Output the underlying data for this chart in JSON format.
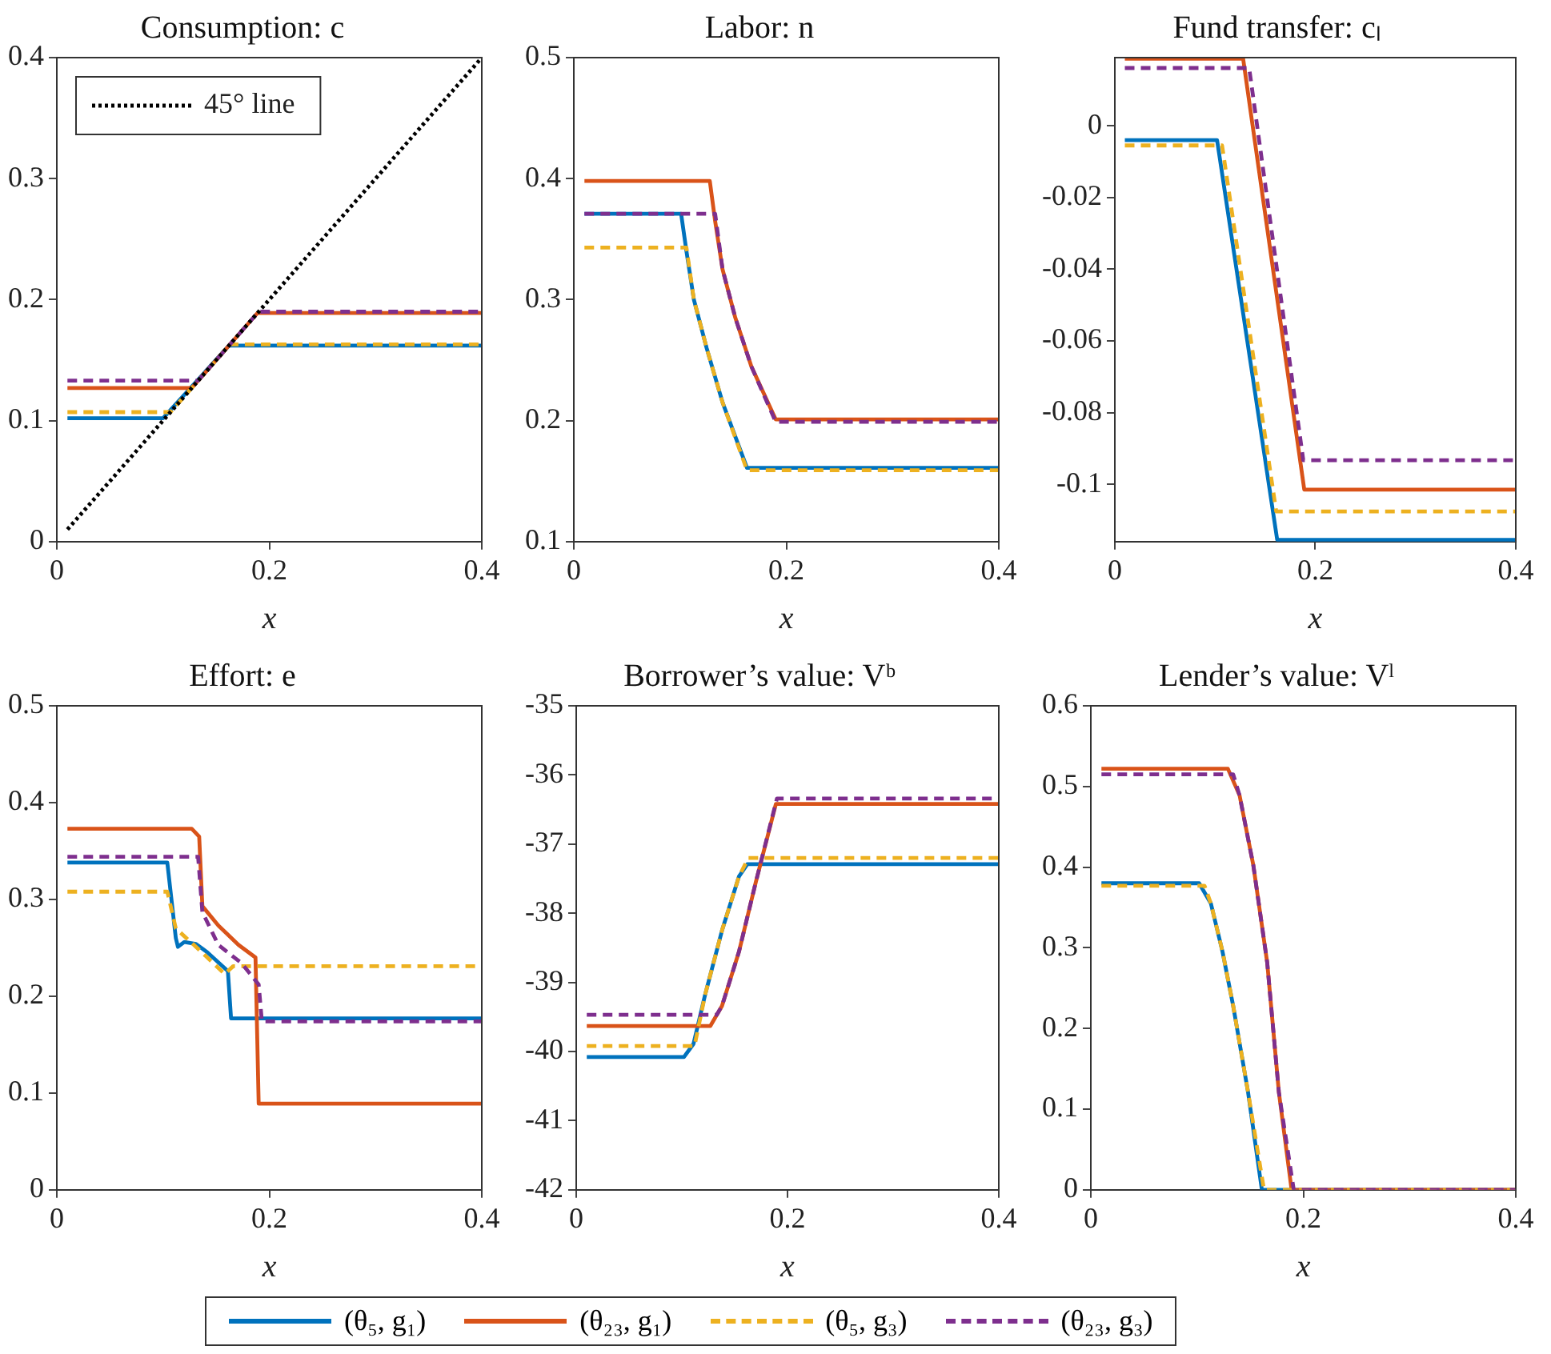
{
  "chart_data": [
    {
      "type": "line",
      "title": "Consumption: c",
      "xlabel": "x",
      "xlim": [
        0,
        0.4
      ],
      "xticks": [
        0,
        0.2,
        0.4
      ],
      "ylim": [
        0,
        0.4
      ],
      "yticks": [
        0,
        0.1,
        0.2,
        0.3,
        0.4
      ],
      "grid": false,
      "legend": "top left",
      "series": [
        {
          "color": "#0072bd",
          "line_style": "solid",
          "x": [
            0.01,
            0.1,
            0.162,
            0.4
          ],
          "values": [
            0.102,
            0.102,
            0.162,
            0.162
          ]
        },
        {
          "color": "#d95319",
          "line_style": "solid",
          "x": [
            0.01,
            0.127,
            0.189,
            0.4
          ],
          "values": [
            0.127,
            0.127,
            0.189,
            0.189
          ]
        },
        {
          "color": "#edb120",
          "line_style": "dashed",
          "x": [
            0.01,
            0.107,
            0.163,
            0.4
          ],
          "values": [
            0.107,
            0.107,
            0.163,
            0.163
          ]
        },
        {
          "color": "#7e2f8e",
          "line_style": "dashed",
          "x": [
            0.01,
            0.133,
            0.19,
            0.4
          ],
          "values": [
            0.133,
            0.133,
            0.19,
            0.19
          ]
        },
        {
          "name": "45° line",
          "color": "#000000",
          "line_style": "dotted",
          "x": [
            0.01,
            0.4
          ],
          "values": [
            0.01,
            0.4
          ]
        }
      ]
    },
    {
      "type": "line",
      "title": "Labor: n",
      "xlabel": "x",
      "xlim": [
        0,
        0.4
      ],
      "xticks": [
        0,
        0.2,
        0.4
      ],
      "ylim": [
        0.1,
        0.5
      ],
      "yticks": [
        0.1,
        0.2,
        0.3,
        0.4,
        0.5
      ],
      "grid": false,
      "series": [
        {
          "color": "#0072bd",
          "line_style": "solid",
          "x": [
            0.01,
            0.101,
            0.106,
            0.113,
            0.125,
            0.14,
            0.163,
            0.4
          ],
          "values": [
            0.371,
            0.371,
            0.34,
            0.3,
            0.26,
            0.215,
            0.161,
            0.161
          ]
        },
        {
          "color": "#d95319",
          "line_style": "solid",
          "x": [
            0.01,
            0.128,
            0.133,
            0.14,
            0.152,
            0.167,
            0.19,
            0.4
          ],
          "values": [
            0.398,
            0.398,
            0.365,
            0.325,
            0.285,
            0.245,
            0.201,
            0.201
          ]
        },
        {
          "color": "#edb120",
          "line_style": "dashed",
          "x": [
            0.01,
            0.106,
            0.113,
            0.125,
            0.14,
            0.163,
            0.4
          ],
          "values": [
            0.343,
            0.343,
            0.3,
            0.26,
            0.215,
            0.159,
            0.159
          ]
        },
        {
          "color": "#7e2f8e",
          "line_style": "dashed",
          "x": [
            0.01,
            0.133,
            0.14,
            0.152,
            0.167,
            0.19,
            0.4
          ],
          "values": [
            0.371,
            0.371,
            0.325,
            0.285,
            0.245,
            0.199,
            0.199
          ]
        }
      ]
    },
    {
      "type": "line",
      "title": "Fund transfer: cₗ",
      "xlabel": "x",
      "xlim": [
        0,
        0.4
      ],
      "xticks": [
        0,
        0.2,
        0.4
      ],
      "ylim": [
        -0.116,
        0.019
      ],
      "yticks": [
        -0.1,
        -0.08,
        -0.06,
        -0.04,
        -0.02,
        0
      ],
      "grid": false,
      "series": [
        {
          "color": "#0072bd",
          "line_style": "solid",
          "x": [
            0.01,
            0.102,
            0.162,
            0.4
          ],
          "values": [
            -0.004,
            -0.004,
            -0.1155,
            -0.1155
          ]
        },
        {
          "color": "#d95319",
          "line_style": "solid",
          "x": [
            0.01,
            0.128,
            0.189,
            0.4
          ],
          "values": [
            0.0187,
            0.0187,
            -0.1015,
            -0.1015
          ]
        },
        {
          "color": "#edb120",
          "line_style": "dashed",
          "x": [
            0.01,
            0.107,
            0.161,
            0.4
          ],
          "values": [
            -0.0055,
            -0.0055,
            -0.1076,
            -0.1076
          ]
        },
        {
          "color": "#7e2f8e",
          "line_style": "dashed",
          "x": [
            0.01,
            0.134,
            0.188,
            0.4
          ],
          "values": [
            0.0161,
            0.0161,
            -0.0933,
            -0.0933
          ]
        }
      ]
    },
    {
      "type": "line",
      "title": "Effort: e",
      "xlabel": "x",
      "xlim": [
        0,
        0.4
      ],
      "xticks": [
        0,
        0.2,
        0.4
      ],
      "ylim": [
        0,
        0.5
      ],
      "yticks": [
        0,
        0.1,
        0.2,
        0.3,
        0.4,
        0.5
      ],
      "grid": false,
      "series": [
        {
          "color": "#0072bd",
          "line_style": "solid",
          "x": [
            0.01,
            0.104,
            0.112,
            0.114,
            0.12,
            0.131,
            0.142,
            0.161,
            0.164,
            0.4
          ],
          "values": [
            0.338,
            0.338,
            0.26,
            0.251,
            0.256,
            0.254,
            0.245,
            0.226,
            0.177,
            0.177
          ]
        },
        {
          "color": "#d95319",
          "line_style": "solid",
          "x": [
            0.01,
            0.127,
            0.134,
            0.137,
            0.152,
            0.171,
            0.187,
            0.19,
            0.4
          ],
          "values": [
            0.373,
            0.373,
            0.365,
            0.293,
            0.273,
            0.253,
            0.24,
            0.089,
            0.089
          ]
        },
        {
          "color": "#edb120",
          "line_style": "dashed",
          "x": [
            0.01,
            0.104,
            0.112,
            0.131,
            0.158,
            0.166,
            0.4
          ],
          "values": [
            0.308,
            0.308,
            0.27,
            0.251,
            0.223,
            0.231,
            0.231
          ]
        },
        {
          "color": "#7e2f8e",
          "line_style": "dashed",
          "x": [
            0.01,
            0.133,
            0.137,
            0.152,
            0.174,
            0.19,
            0.193,
            0.4
          ],
          "values": [
            0.344,
            0.344,
            0.287,
            0.253,
            0.234,
            0.212,
            0.174,
            0.174
          ]
        }
      ]
    },
    {
      "type": "line",
      "title": "Borrower’s value: Vᵇ",
      "xlabel": "x",
      "xlim": [
        0,
        0.4
      ],
      "xticks": [
        0,
        0.2,
        0.4
      ],
      "ylim": [
        -42,
        -35
      ],
      "yticks": [
        -42,
        -41,
        -40,
        -39,
        -38,
        -37,
        -36,
        -35
      ],
      "grid": false,
      "legend": "bottom",
      "series": [
        {
          "name": "(θ₅, g₁)",
          "color": "#0072bd",
          "line_style": "solid",
          "x": [
            0.01,
            0.102,
            0.111,
            0.122,
            0.138,
            0.154,
            0.162,
            0.4
          ],
          "values": [
            -40.08,
            -40.08,
            -39.89,
            -39.18,
            -38.25,
            -37.47,
            -37.29,
            -37.29
          ]
        },
        {
          "name": "(θ₂₃, g₁)",
          "color": "#d95319",
          "line_style": "solid",
          "x": [
            0.01,
            0.127,
            0.138,
            0.154,
            0.17,
            0.189,
            0.4
          ],
          "values": [
            -39.63,
            -39.63,
            -39.34,
            -38.56,
            -37.55,
            -36.42,
            -36.42
          ]
        },
        {
          "name": "(θ₅, g₃)",
          "color": "#edb120",
          "line_style": "dashed",
          "x": [
            0.01,
            0.112,
            0.122,
            0.138,
            0.154,
            0.163,
            0.4
          ],
          "values": [
            -39.92,
            -39.92,
            -39.18,
            -38.25,
            -37.47,
            -37.2,
            -37.2
          ]
        },
        {
          "name": "(θ₂₃, g₃)",
          "color": "#7e2f8e",
          "line_style": "dashed",
          "x": [
            0.01,
            0.133,
            0.138,
            0.154,
            0.17,
            0.19,
            0.4
          ],
          "values": [
            -39.47,
            -39.47,
            -39.34,
            -38.56,
            -37.55,
            -36.34,
            -36.34
          ]
        }
      ]
    },
    {
      "type": "line",
      "title": "Lender’s value: Vˡ",
      "xlabel": "x",
      "xlim": [
        0,
        0.4
      ],
      "xticks": [
        0,
        0.2,
        0.4
      ],
      "ylim": [
        0,
        0.6
      ],
      "yticks": [
        0,
        0.1,
        0.2,
        0.3,
        0.4,
        0.5,
        0.6
      ],
      "grid": false,
      "series": [
        {
          "color": "#0072bd",
          "line_style": "solid",
          "x": [
            0.01,
            0.102,
            0.113,
            0.124,
            0.134,
            0.148,
            0.161,
            0.4
          ],
          "values": [
            0.38,
            0.38,
            0.355,
            0.295,
            0.228,
            0.121,
            0,
            0
          ]
        },
        {
          "color": "#d95319",
          "line_style": "solid",
          "x": [
            0.01,
            0.129,
            0.14,
            0.153,
            0.166,
            0.177,
            0.189,
            0.4
          ],
          "values": [
            0.522,
            0.522,
            0.489,
            0.402,
            0.282,
            0.121,
            0,
            0
          ]
        },
        {
          "color": "#edb120",
          "line_style": "dashed",
          "x": [
            0.01,
            0.107,
            0.113,
            0.124,
            0.134,
            0.148,
            0.163,
            0.4
          ],
          "values": [
            0.377,
            0.377,
            0.355,
            0.295,
            0.228,
            0.121,
            0,
            0
          ]
        },
        {
          "color": "#7e2f8e",
          "line_style": "dashed",
          "x": [
            0.01,
            0.134,
            0.14,
            0.153,
            0.166,
            0.177,
            0.191,
            0.4
          ],
          "values": [
            0.515,
            0.515,
            0.489,
            0.402,
            0.282,
            0.121,
            0,
            0
          ]
        }
      ]
    }
  ]
}
